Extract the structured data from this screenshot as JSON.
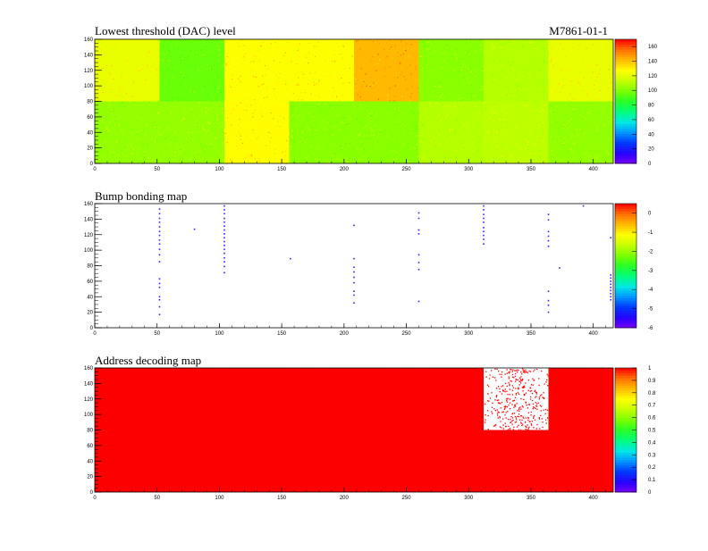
{
  "figure": {
    "device_id": "M7861-01-1"
  },
  "chart_data": [
    {
      "type": "heatmap",
      "title": "Lowest threshold (DAC) level",
      "xlim": [
        0,
        416
      ],
      "ylim": [
        0,
        160
      ],
      "x_ticks": [
        0,
        50,
        100,
        150,
        200,
        250,
        300,
        350,
        400
      ],
      "y_ticks": [
        0,
        20,
        40,
        60,
        80,
        100,
        120,
        140,
        160
      ],
      "colorbar": {
        "min": 0,
        "max": 170,
        "ticks": [
          0,
          20,
          40,
          60,
          80,
          100,
          120,
          140,
          160
        ]
      },
      "regions": [
        {
          "x": [
            0,
            52
          ],
          "y": [
            80,
            160
          ],
          "value": 122
        },
        {
          "x": [
            52,
            104
          ],
          "y": [
            80,
            160
          ],
          "value": 96
        },
        {
          "x": [
            104,
            156
          ],
          "y": [
            80,
            160
          ],
          "value": 127
        },
        {
          "x": [
            156,
            208
          ],
          "y": [
            80,
            160
          ],
          "value": 127
        },
        {
          "x": [
            208,
            260
          ],
          "y": [
            80,
            160
          ],
          "value": 142
        },
        {
          "x": [
            260,
            312
          ],
          "y": [
            80,
            160
          ],
          "value": 102
        },
        {
          "x": [
            312,
            364
          ],
          "y": [
            80,
            160
          ],
          "value": 110
        },
        {
          "x": [
            364,
            416
          ],
          "y": [
            80,
            160
          ],
          "value": 122
        },
        {
          "x": [
            0,
            52
          ],
          "y": [
            0,
            80
          ],
          "value": 104
        },
        {
          "x": [
            52,
            104
          ],
          "y": [
            0,
            80
          ],
          "value": 104
        },
        {
          "x": [
            104,
            156
          ],
          "y": [
            0,
            80
          ],
          "value": 128
        },
        {
          "x": [
            156,
            208
          ],
          "y": [
            0,
            80
          ],
          "value": 102
        },
        {
          "x": [
            208,
            260
          ],
          "y": [
            0,
            80
          ],
          "value": 102
        },
        {
          "x": [
            260,
            312
          ],
          "y": [
            0,
            80
          ],
          "value": 110
        },
        {
          "x": [
            312,
            364
          ],
          "y": [
            0,
            80
          ],
          "value": 112
        },
        {
          "x": [
            364,
            416
          ],
          "y": [
            0,
            80
          ],
          "value": 104
        }
      ]
    },
    {
      "type": "scatter",
      "title": "Bump bonding map",
      "xlim": [
        0,
        416
      ],
      "ylim": [
        0,
        160
      ],
      "x_ticks": [
        0,
        50,
        100,
        150,
        200,
        250,
        300,
        350,
        400
      ],
      "y_ticks": [
        0,
        20,
        40,
        60,
        80,
        100,
        120,
        140,
        160
      ],
      "colorbar": {
        "min": -6,
        "max": 0.5,
        "ticks": [
          0,
          -1,
          -2,
          -3,
          -4,
          -5,
          -6
        ]
      },
      "points": [
        {
          "x": 52,
          "y": 153
        },
        {
          "x": 52,
          "y": 147
        },
        {
          "x": 52,
          "y": 141
        },
        {
          "x": 52,
          "y": 136
        },
        {
          "x": 52,
          "y": 130
        },
        {
          "x": 52,
          "y": 124
        },
        {
          "x": 52,
          "y": 119
        },
        {
          "x": 52,
          "y": 113
        },
        {
          "x": 52,
          "y": 108
        },
        {
          "x": 52,
          "y": 101
        },
        {
          "x": 52,
          "y": 94
        },
        {
          "x": 52,
          "y": 85
        },
        {
          "x": 52,
          "y": 63
        },
        {
          "x": 52,
          "y": 57
        },
        {
          "x": 52,
          "y": 52
        },
        {
          "x": 52,
          "y": 40
        },
        {
          "x": 52,
          "y": 36
        },
        {
          "x": 52,
          "y": 27
        },
        {
          "x": 52,
          "y": 17
        },
        {
          "x": 80,
          "y": 127
        },
        {
          "x": 104,
          "y": 157
        },
        {
          "x": 104,
          "y": 152
        },
        {
          "x": 104,
          "y": 147
        },
        {
          "x": 104,
          "y": 141
        },
        {
          "x": 104,
          "y": 136
        },
        {
          "x": 104,
          "y": 131
        },
        {
          "x": 104,
          "y": 126
        },
        {
          "x": 104,
          "y": 121
        },
        {
          "x": 104,
          "y": 116
        },
        {
          "x": 104,
          "y": 111
        },
        {
          "x": 104,
          "y": 106
        },
        {
          "x": 104,
          "y": 101
        },
        {
          "x": 104,
          "y": 96
        },
        {
          "x": 104,
          "y": 90
        },
        {
          "x": 104,
          "y": 85
        },
        {
          "x": 104,
          "y": 79
        },
        {
          "x": 104,
          "y": 71
        },
        {
          "x": 157,
          "y": 89
        },
        {
          "x": 208,
          "y": 132
        },
        {
          "x": 208,
          "y": 89
        },
        {
          "x": 208,
          "y": 78
        },
        {
          "x": 208,
          "y": 72
        },
        {
          "x": 208,
          "y": 65
        },
        {
          "x": 208,
          "y": 58
        },
        {
          "x": 208,
          "y": 47
        },
        {
          "x": 208,
          "y": 42
        },
        {
          "x": 208,
          "y": 32
        },
        {
          "x": 260,
          "y": 148
        },
        {
          "x": 260,
          "y": 141
        },
        {
          "x": 260,
          "y": 126
        },
        {
          "x": 260,
          "y": 121
        },
        {
          "x": 260,
          "y": 94
        },
        {
          "x": 260,
          "y": 84
        },
        {
          "x": 260,
          "y": 75
        },
        {
          "x": 260,
          "y": 34
        },
        {
          "x": 312,
          "y": 157
        },
        {
          "x": 312,
          "y": 152
        },
        {
          "x": 312,
          "y": 146
        },
        {
          "x": 312,
          "y": 141
        },
        {
          "x": 312,
          "y": 136
        },
        {
          "x": 312,
          "y": 129
        },
        {
          "x": 312,
          "y": 124
        },
        {
          "x": 312,
          "y": 119
        },
        {
          "x": 312,
          "y": 114
        },
        {
          "x": 312,
          "y": 108
        },
        {
          "x": 364,
          "y": 146
        },
        {
          "x": 364,
          "y": 139
        },
        {
          "x": 364,
          "y": 124
        },
        {
          "x": 364,
          "y": 118
        },
        {
          "x": 364,
          "y": 112
        },
        {
          "x": 364,
          "y": 105
        },
        {
          "x": 364,
          "y": 47
        },
        {
          "x": 364,
          "y": 35
        },
        {
          "x": 364,
          "y": 29
        },
        {
          "x": 364,
          "y": 20
        },
        {
          "x": 373,
          "y": 77
        },
        {
          "x": 392,
          "y": 157
        },
        {
          "x": 414,
          "y": 116
        },
        {
          "x": 414,
          "y": 68
        },
        {
          "x": 414,
          "y": 64
        },
        {
          "x": 414,
          "y": 60
        },
        {
          "x": 414,
          "y": 56
        },
        {
          "x": 414,
          "y": 52
        },
        {
          "x": 414,
          "y": 48
        },
        {
          "x": 414,
          "y": 44
        },
        {
          "x": 414,
          "y": 40
        },
        {
          "x": 414,
          "y": 36
        }
      ]
    },
    {
      "type": "heatmap",
      "title": "Address decoding map",
      "xlim": [
        0,
        416
      ],
      "ylim": [
        0,
        160
      ],
      "x_ticks": [
        0,
        50,
        100,
        150,
        200,
        250,
        300,
        350,
        400
      ],
      "y_ticks": [
        0,
        20,
        40,
        60,
        80,
        100,
        120,
        140,
        160
      ],
      "colorbar": {
        "min": 0,
        "max": 1,
        "ticks": [
          0,
          0.1,
          0.2,
          0.3,
          0.4,
          0.5,
          0.6,
          0.7,
          0.8,
          0.9,
          1
        ]
      },
      "background_value": 1,
      "empty_regions": [
        {
          "x": [
            312,
            364
          ],
          "y": [
            80,
            160
          ]
        }
      ]
    }
  ]
}
